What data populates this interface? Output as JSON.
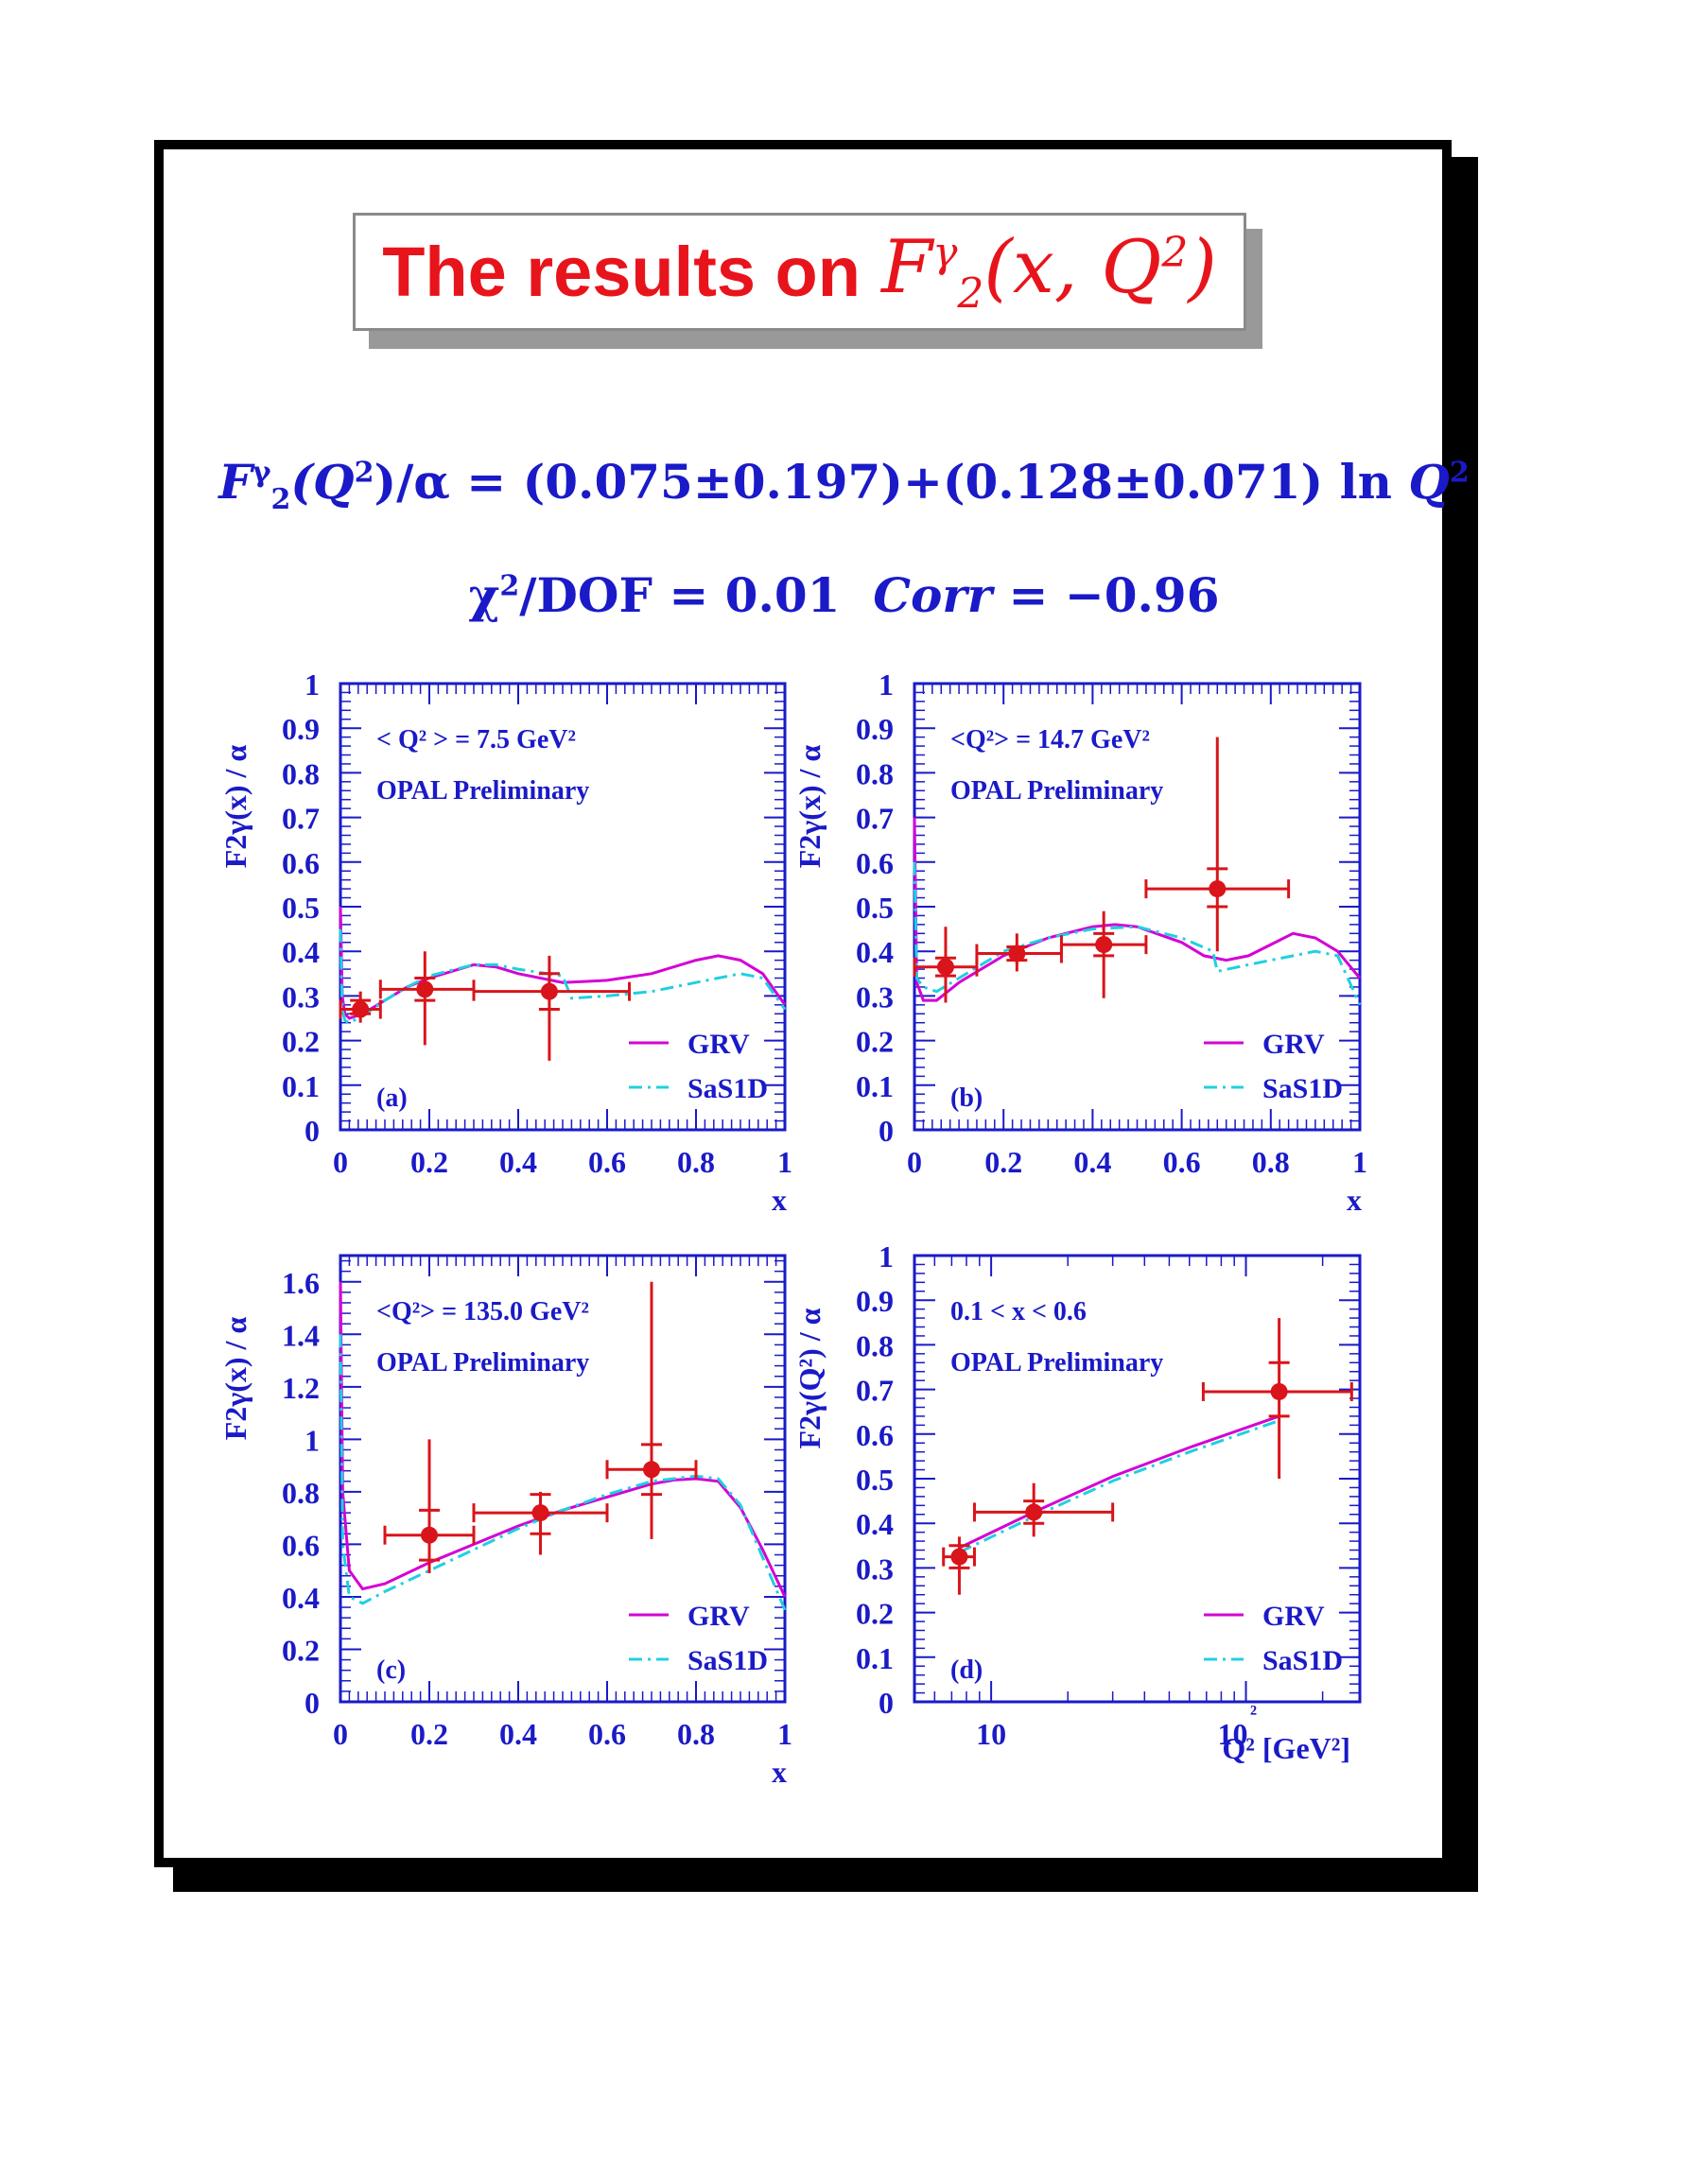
{
  "title": {
    "text": "The results on",
    "math_base": "F",
    "math_sup": "γ",
    "math_sub": "2",
    "math_args": "(x, Q",
    "math_args_sup": "2",
    "math_close": ")"
  },
  "formula": {
    "lhs_base": "F",
    "lhs_sup": "γ",
    "lhs_sub": "2",
    "lhs_rest": "(Q",
    "lhs_rest_sup": "2",
    "lhs_tail": ")/α",
    "rhs": " = (0.075±0.197)+(0.128±0.071) ln ",
    "rhs_q": "Q",
    "rhs_q_sup": "2"
  },
  "chi2": {
    "symbol": "χ",
    "sup": "2",
    "rest": "/DOF = 0.01",
    "corr_label": "Corr",
    "corr_value": " = −0.96"
  },
  "colors": {
    "axis": "#1a1ac8",
    "data": "#d9141a",
    "grv": "#d400d4",
    "sas": "#20d0e0",
    "title": "#e8141c"
  },
  "chart_data": [
    {
      "panel": "(a)",
      "type": "scatter",
      "ylabel": "F2γ(x) / α",
      "xlabel": "x",
      "xlim": [
        0,
        1
      ],
      "ylim": [
        0,
        1
      ],
      "yticks": [
        "0",
        "0.1",
        "0.2",
        "0.3",
        "0.4",
        "0.5",
        "0.6",
        "0.7",
        "0.8",
        "0.9",
        "1"
      ],
      "xticks": [
        "0",
        "0.2",
        "0.4",
        "0.6",
        "0.8",
        "1"
      ],
      "annotation_q2": "< Q² > = 7.5 GeV²",
      "annotation_opal": "OPAL Preliminary",
      "legend": [
        "GRV",
        "SaS1D"
      ],
      "data": [
        {
          "x": 0.045,
          "y": 0.27,
          "xlo": 0.0,
          "xhi": 0.09,
          "ylo": 0.24,
          "yhi": 0.31,
          "ystatlo": 0.26,
          "ystathi": 0.29
        },
        {
          "x": 0.19,
          "y": 0.315,
          "xlo": 0.09,
          "xhi": 0.3,
          "ylo": 0.19,
          "yhi": 0.4,
          "ystatlo": 0.29,
          "ystathi": 0.34
        },
        {
          "x": 0.47,
          "y": 0.31,
          "xlo": 0.3,
          "xhi": 0.65,
          "ylo": 0.155,
          "yhi": 0.39,
          "ystatlo": 0.27,
          "ystathi": 0.35
        }
      ],
      "series": [
        {
          "name": "GRV",
          "x": [
            0.0,
            0.004,
            0.01,
            0.02,
            0.05,
            0.1,
            0.15,
            0.2,
            0.3,
            0.35,
            0.4,
            0.5,
            0.6,
            0.7,
            0.8,
            0.85,
            0.9,
            0.95,
            1.0
          ],
          "y": [
            0.5,
            0.3,
            0.26,
            0.25,
            0.26,
            0.29,
            0.32,
            0.34,
            0.37,
            0.365,
            0.35,
            0.33,
            0.335,
            0.35,
            0.38,
            0.39,
            0.38,
            0.35,
            0.28
          ]
        },
        {
          "name": "SaS1D",
          "x": [
            0.0,
            0.004,
            0.01,
            0.02,
            0.05,
            0.1,
            0.15,
            0.2,
            0.3,
            0.35,
            0.4,
            0.5,
            0.52,
            0.6,
            0.7,
            0.8,
            0.9,
            0.95,
            1.0
          ],
          "y": [
            0.45,
            0.27,
            0.245,
            0.24,
            0.255,
            0.29,
            0.32,
            0.345,
            0.37,
            0.37,
            0.36,
            0.345,
            0.295,
            0.3,
            0.31,
            0.33,
            0.35,
            0.34,
            0.27
          ]
        }
      ]
    },
    {
      "panel": "(b)",
      "type": "scatter",
      "ylabel": "F2γ(x) / α",
      "xlabel": "x",
      "xlim": [
        0,
        1
      ],
      "ylim": [
        0,
        1
      ],
      "yticks": [
        "0",
        "0.1",
        "0.2",
        "0.3",
        "0.4",
        "0.5",
        "0.6",
        "0.7",
        "0.8",
        "0.9",
        "1"
      ],
      "xticks": [
        "0",
        "0.2",
        "0.4",
        "0.6",
        "0.8",
        "1"
      ],
      "annotation_q2": "<Q²> = 14.7 GeV²",
      "annotation_opal": "OPAL Preliminary",
      "legend": [
        "GRV",
        "SaS1D"
      ],
      "data": [
        {
          "x": 0.07,
          "y": 0.365,
          "xlo": 0.0,
          "xhi": 0.14,
          "ylo": 0.285,
          "yhi": 0.455,
          "ystatlo": 0.345,
          "ystathi": 0.385
        },
        {
          "x": 0.23,
          "y": 0.395,
          "xlo": 0.14,
          "xhi": 0.33,
          "ylo": 0.355,
          "yhi": 0.44,
          "ystatlo": 0.38,
          "ystathi": 0.41
        },
        {
          "x": 0.425,
          "y": 0.415,
          "xlo": 0.33,
          "xhi": 0.52,
          "ylo": 0.295,
          "yhi": 0.49,
          "ystatlo": 0.39,
          "ystathi": 0.44
        },
        {
          "x": 0.68,
          "y": 0.54,
          "xlo": 0.52,
          "xhi": 0.84,
          "ylo": 0.4,
          "yhi": 0.88,
          "ystatlo": 0.5,
          "ystathi": 0.585
        }
      ],
      "series": [
        {
          "name": "GRV",
          "x": [
            0.0,
            0.005,
            0.02,
            0.05,
            0.1,
            0.2,
            0.3,
            0.4,
            0.45,
            0.5,
            0.6,
            0.65,
            0.7,
            0.75,
            0.8,
            0.85,
            0.9,
            0.95,
            1.0
          ],
          "y": [
            0.7,
            0.33,
            0.29,
            0.29,
            0.33,
            0.39,
            0.43,
            0.455,
            0.46,
            0.455,
            0.42,
            0.39,
            0.38,
            0.39,
            0.415,
            0.44,
            0.43,
            0.4,
            0.34
          ]
        },
        {
          "name": "SaS1D",
          "x": [
            0.0,
            0.005,
            0.02,
            0.05,
            0.1,
            0.2,
            0.3,
            0.4,
            0.5,
            0.6,
            0.67,
            0.68,
            0.75,
            0.8,
            0.9,
            0.95,
            1.0
          ],
          "y": [
            0.6,
            0.34,
            0.32,
            0.31,
            0.34,
            0.4,
            0.43,
            0.45,
            0.455,
            0.43,
            0.4,
            0.355,
            0.37,
            0.38,
            0.4,
            0.39,
            0.28
          ]
        }
      ]
    },
    {
      "panel": "(c)",
      "type": "scatter",
      "ylabel": "F2γ(x) / α",
      "xlabel": "x",
      "xlim": [
        0,
        1
      ],
      "ylim": [
        0,
        1.7
      ],
      "yticks": [
        "0",
        "0.2",
        "0.4",
        "0.6",
        "0.8",
        "1",
        "1.2",
        "1.4",
        "1.6"
      ],
      "xticks": [
        "0",
        "0.2",
        "0.4",
        "0.6",
        "0.8",
        "1"
      ],
      "annotation_q2": "<Q²> = 135.0 GeV²",
      "annotation_opal": "OPAL Preliminary",
      "legend": [
        "GRV",
        "SaS1D"
      ],
      "data": [
        {
          "x": 0.2,
          "y": 0.635,
          "xlo": 0.1,
          "xhi": 0.3,
          "ylo": 0.49,
          "yhi": 1.0,
          "ystatlo": 0.54,
          "ystathi": 0.73
        },
        {
          "x": 0.45,
          "y": 0.72,
          "xlo": 0.3,
          "xhi": 0.6,
          "ylo": 0.56,
          "yhi": 0.8,
          "ystatlo": 0.64,
          "ystathi": 0.79
        },
        {
          "x": 0.7,
          "y": 0.885,
          "xlo": 0.6,
          "xhi": 0.8,
          "ylo": 0.62,
          "yhi": 1.6,
          "ystatlo": 0.79,
          "ystathi": 0.98
        }
      ],
      "series": [
        {
          "name": "GRV",
          "x": [
            0.0,
            0.005,
            0.02,
            0.05,
            0.1,
            0.2,
            0.3,
            0.4,
            0.5,
            0.6,
            0.7,
            0.75,
            0.8,
            0.85,
            0.9,
            0.95,
            1.0
          ],
          "y": [
            1.6,
            0.8,
            0.5,
            0.43,
            0.45,
            0.53,
            0.6,
            0.67,
            0.73,
            0.78,
            0.83,
            0.845,
            0.85,
            0.84,
            0.74,
            0.58,
            0.4
          ]
        },
        {
          "name": "SaS1D",
          "x": [
            0.0,
            0.005,
            0.02,
            0.05,
            0.1,
            0.2,
            0.3,
            0.4,
            0.5,
            0.6,
            0.7,
            0.8,
            0.85,
            0.9,
            0.95,
            1.0
          ],
          "y": [
            1.4,
            0.6,
            0.4,
            0.375,
            0.42,
            0.5,
            0.58,
            0.66,
            0.73,
            0.79,
            0.84,
            0.86,
            0.85,
            0.75,
            0.55,
            0.35
          ]
        }
      ]
    },
    {
      "panel": "(d)",
      "type": "scatter",
      "ylabel": "F2γ(Q²) / α",
      "xlabel": "Q² [GeV²]",
      "xscale": "log",
      "xlim": [
        5,
        280
      ],
      "ylim": [
        0,
        1
      ],
      "yticks": [
        "0",
        "0.1",
        "0.2",
        "0.3",
        "0.4",
        "0.5",
        "0.6",
        "0.7",
        "0.8",
        "0.9",
        "1"
      ],
      "xticks": [
        "10",
        "10²"
      ],
      "annotation_q2": "0.1 < x < 0.6",
      "annotation_opal": "OPAL Preliminary",
      "legend": [
        "GRV",
        "SaS1D"
      ],
      "data": [
        {
          "x": 7.5,
          "y": 0.325,
          "xlo": 6.5,
          "xhi": 8.6,
          "ylo": 0.24,
          "yhi": 0.37,
          "ystatlo": 0.3,
          "ystathi": 0.35
        },
        {
          "x": 14.7,
          "y": 0.425,
          "xlo": 8.6,
          "xhi": 30,
          "ylo": 0.37,
          "yhi": 0.49,
          "ystatlo": 0.4,
          "ystathi": 0.45
        },
        {
          "x": 135,
          "y": 0.695,
          "xlo": 68,
          "xhi": 260,
          "ylo": 0.5,
          "yhi": 0.86,
          "ystatlo": 0.64,
          "ystathi": 0.76
        }
      ],
      "series": [
        {
          "name": "GRV",
          "x": [
            7.5,
            14.7,
            30,
            60,
            135
          ],
          "y": [
            0.345,
            0.425,
            0.505,
            0.57,
            0.64
          ]
        },
        {
          "name": "SaS1D",
          "x": [
            7.5,
            14.7,
            30,
            60,
            135
          ],
          "y": [
            0.335,
            0.415,
            0.495,
            0.56,
            0.63
          ]
        }
      ]
    }
  ]
}
